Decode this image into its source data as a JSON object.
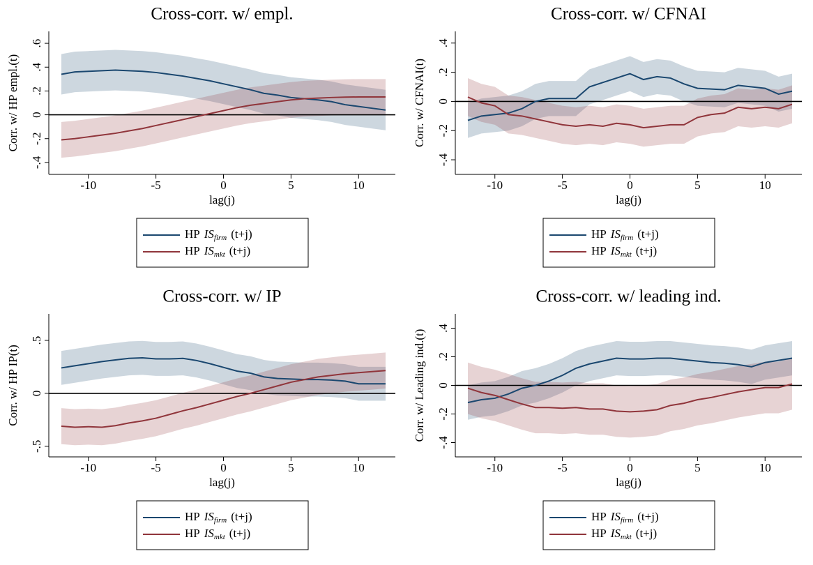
{
  "chart_data": [
    {
      "type": "line",
      "title": "Cross-corr. w/ empl.",
      "xlabel": "lag(j)",
      "ylabel": "Corr. w/ HP empl.(t)",
      "x": [
        -12,
        -11,
        -10,
        -9,
        -8,
        -7,
        -6,
        -5,
        -4,
        -3,
        -2,
        -1,
        0,
        1,
        2,
        3,
        4,
        5,
        6,
        7,
        8,
        9,
        10,
        11,
        12
      ],
      "xlim": [
        -12,
        12
      ],
      "xticks": [
        -10,
        -5,
        0,
        5,
        10
      ],
      "ylim": [
        -0.5,
        0.7
      ],
      "yticks": [
        {
          "value": -0.4,
          "label": "-.4"
        },
        {
          "value": -0.2,
          "label": "-.2"
        },
        0,
        {
          "value": 0.2,
          "label": ".2"
        },
        {
          "value": 0.4,
          "label": ".4"
        },
        {
          "value": 0.6,
          "label": ".6"
        }
      ],
      "hline": 0,
      "series": [
        {
          "name": [
            "HP",
            "IS",
            "firm",
            "(t+j)"
          ],
          "color": "#1a476f",
          "values": [
            0.34,
            0.36,
            0.365,
            0.37,
            0.375,
            0.37,
            0.365,
            0.355,
            0.34,
            0.325,
            0.305,
            0.285,
            0.26,
            0.235,
            0.21,
            0.18,
            0.165,
            0.145,
            0.135,
            0.125,
            0.11,
            0.085,
            0.07,
            0.055,
            0.04
          ],
          "lower": [
            0.17,
            0.19,
            0.195,
            0.2,
            0.205,
            0.2,
            0.195,
            0.185,
            0.17,
            0.155,
            0.135,
            0.115,
            0.09,
            0.065,
            0.04,
            0.01,
            -0.005,
            -0.025,
            -0.035,
            -0.045,
            -0.06,
            -0.085,
            -0.1,
            -0.115,
            -0.13
          ],
          "upper": [
            0.51,
            0.53,
            0.535,
            0.54,
            0.545,
            0.54,
            0.535,
            0.525,
            0.51,
            0.495,
            0.475,
            0.455,
            0.43,
            0.405,
            0.38,
            0.35,
            0.335,
            0.315,
            0.305,
            0.295,
            0.28,
            0.255,
            0.24,
            0.225,
            0.21
          ]
        },
        {
          "name": [
            "HP",
            "IS",
            "mkt",
            "(t+j)"
          ],
          "color": "#90353b",
          "values": [
            -0.21,
            -0.2,
            -0.185,
            -0.17,
            -0.155,
            -0.135,
            -0.115,
            -0.09,
            -0.065,
            -0.04,
            -0.015,
            0.01,
            0.035,
            0.06,
            0.08,
            0.095,
            0.11,
            0.125,
            0.135,
            0.14,
            0.145,
            0.148,
            0.15,
            0.15,
            0.15
          ],
          "lower": [
            -0.36,
            -0.35,
            -0.335,
            -0.32,
            -0.305,
            -0.285,
            -0.265,
            -0.24,
            -0.215,
            -0.19,
            -0.165,
            -0.14,
            -0.115,
            -0.09,
            -0.07,
            -0.055,
            -0.04,
            -0.025,
            -0.015,
            -0.01,
            -0.005,
            -0.002,
            0,
            0,
            0
          ],
          "upper": [
            -0.06,
            -0.05,
            -0.035,
            -0.02,
            -0.005,
            0.015,
            0.035,
            0.06,
            0.085,
            0.11,
            0.135,
            0.16,
            0.185,
            0.21,
            0.23,
            0.245,
            0.26,
            0.275,
            0.285,
            0.29,
            0.295,
            0.298,
            0.3,
            0.3,
            0.3
          ]
        }
      ]
    },
    {
      "type": "line",
      "title": "Cross-corr. w/ CFNAI",
      "xlabel": "lag(j)",
      "ylabel": "Corr. w/ CFNAI(t)",
      "x": [
        -12,
        -11,
        -10,
        -9,
        -8,
        -7,
        -6,
        -5,
        -4,
        -3,
        -2,
        -1,
        0,
        1,
        2,
        3,
        4,
        5,
        6,
        7,
        8,
        9,
        10,
        11,
        12
      ],
      "xlim": [
        -12,
        12
      ],
      "xticks": [
        -10,
        -5,
        0,
        5,
        10
      ],
      "ylim": [
        -0.5,
        0.48
      ],
      "yticks": [
        {
          "value": -0.4,
          "label": "-.4"
        },
        {
          "value": -0.2,
          "label": "-.2"
        },
        0,
        {
          "value": 0.2,
          "label": ".2"
        },
        {
          "value": 0.4,
          "label": ".4"
        }
      ],
      "hline": 0,
      "series": [
        {
          "name": [
            "HP",
            "IS",
            "firm",
            "(t+j)"
          ],
          "color": "#1a476f",
          "values": [
            -0.13,
            -0.1,
            -0.09,
            -0.08,
            -0.05,
            0,
            0.02,
            0.02,
            0.02,
            0.1,
            0.13,
            0.16,
            0.19,
            0.15,
            0.17,
            0.16,
            0.12,
            0.09,
            0.085,
            0.08,
            0.11,
            0.1,
            0.09,
            0.05,
            0.07
          ],
          "lower": [
            -0.25,
            -0.22,
            -0.21,
            -0.2,
            -0.17,
            -0.12,
            -0.1,
            -0.1,
            -0.1,
            -0.02,
            0.01,
            0.04,
            0.07,
            0.03,
            0.05,
            0.04,
            0,
            -0.03,
            -0.035,
            -0.04,
            -0.01,
            -0.02,
            -0.03,
            -0.07,
            -0.05
          ],
          "upper": [
            -0.01,
            0.02,
            0.03,
            0.04,
            0.07,
            0.12,
            0.14,
            0.14,
            0.14,
            0.22,
            0.25,
            0.28,
            0.31,
            0.27,
            0.29,
            0.28,
            0.24,
            0.21,
            0.205,
            0.2,
            0.23,
            0.22,
            0.21,
            0.17,
            0.19
          ]
        },
        {
          "name": [
            "HP",
            "IS",
            "mkt",
            "(t+j)"
          ],
          "color": "#90353b",
          "values": [
            0.03,
            -0.01,
            -0.03,
            -0.09,
            -0.1,
            -0.12,
            -0.14,
            -0.16,
            -0.17,
            -0.16,
            -0.17,
            -0.15,
            -0.16,
            -0.18,
            -0.17,
            -0.16,
            -0.16,
            -0.11,
            -0.09,
            -0.08,
            -0.04,
            -0.05,
            -0.04,
            -0.05,
            -0.02
          ],
          "lower": [
            -0.1,
            -0.14,
            -0.16,
            -0.22,
            -0.23,
            -0.25,
            -0.27,
            -0.29,
            -0.3,
            -0.29,
            -0.3,
            -0.28,
            -0.29,
            -0.31,
            -0.3,
            -0.29,
            -0.29,
            -0.24,
            -0.22,
            -0.21,
            -0.17,
            -0.18,
            -0.17,
            -0.18,
            -0.15
          ],
          "upper": [
            0.16,
            0.12,
            0.1,
            0.04,
            0.03,
            0.01,
            -0.01,
            -0.03,
            -0.04,
            -0.03,
            -0.04,
            -0.02,
            -0.03,
            -0.05,
            -0.04,
            -0.03,
            -0.03,
            0.02,
            0.04,
            0.05,
            0.09,
            0.08,
            0.09,
            0.08,
            0.11
          ]
        }
      ]
    },
    {
      "type": "line",
      "title": "Cross-corr. w/ IP",
      "xlabel": "lag(j)",
      "ylabel": "Corr. w/ HP IP(t)",
      "x": [
        -12,
        -11,
        -10,
        -9,
        -8,
        -7,
        -6,
        -5,
        -4,
        -3,
        -2,
        -1,
        0,
        1,
        2,
        3,
        4,
        5,
        6,
        7,
        8,
        9,
        10,
        11,
        12
      ],
      "xlim": [
        -12,
        12
      ],
      "xticks": [
        -10,
        -5,
        0,
        5,
        10
      ],
      "ylim": [
        -0.6,
        0.75
      ],
      "yticks": [
        {
          "value": -0.5,
          "label": "-.5"
        },
        0,
        {
          "value": 0.5,
          "label": ".5"
        }
      ],
      "hline": 0,
      "series": [
        {
          "name": [
            "HP",
            "IS",
            "firm",
            "(t+j)"
          ],
          "color": "#1a476f",
          "values": [
            0.24,
            0.26,
            0.28,
            0.3,
            0.315,
            0.33,
            0.335,
            0.325,
            0.325,
            0.33,
            0.31,
            0.28,
            0.245,
            0.21,
            0.19,
            0.155,
            0.14,
            0.135,
            0.13,
            0.13,
            0.125,
            0.115,
            0.09,
            0.09,
            0.09
          ],
          "lower": [
            0.08,
            0.1,
            0.12,
            0.14,
            0.155,
            0.17,
            0.175,
            0.165,
            0.165,
            0.17,
            0.15,
            0.12,
            0.085,
            0.05,
            0.03,
            -0.005,
            -0.02,
            -0.025,
            -0.03,
            -0.03,
            -0.035,
            -0.045,
            -0.07,
            -0.07,
            -0.07
          ],
          "upper": [
            0.4,
            0.42,
            0.44,
            0.46,
            0.475,
            0.49,
            0.495,
            0.485,
            0.485,
            0.49,
            0.47,
            0.44,
            0.405,
            0.37,
            0.35,
            0.315,
            0.3,
            0.295,
            0.29,
            0.29,
            0.285,
            0.275,
            0.25,
            0.25,
            0.25
          ]
        },
        {
          "name": [
            "HP",
            "IS",
            "mkt",
            "(t+j)"
          ],
          "color": "#90353b",
          "values": [
            -0.31,
            -0.32,
            -0.315,
            -0.32,
            -0.305,
            -0.28,
            -0.26,
            -0.235,
            -0.2,
            -0.165,
            -0.135,
            -0.1,
            -0.065,
            -0.03,
            0,
            0.035,
            0.07,
            0.105,
            0.13,
            0.155,
            0.17,
            0.185,
            0.195,
            0.205,
            0.215
          ],
          "lower": [
            -0.48,
            -0.49,
            -0.485,
            -0.49,
            -0.475,
            -0.45,
            -0.43,
            -0.405,
            -0.37,
            -0.335,
            -0.305,
            -0.27,
            -0.235,
            -0.2,
            -0.17,
            -0.135,
            -0.1,
            -0.065,
            -0.04,
            -0.015,
            0,
            0.015,
            0.025,
            0.035,
            0.045
          ],
          "upper": [
            -0.14,
            -0.15,
            -0.145,
            -0.15,
            -0.135,
            -0.11,
            -0.09,
            -0.065,
            -0.03,
            0.005,
            0.035,
            0.07,
            0.105,
            0.14,
            0.17,
            0.205,
            0.24,
            0.275,
            0.3,
            0.325,
            0.34,
            0.355,
            0.365,
            0.375,
            0.385
          ]
        }
      ]
    },
    {
      "type": "line",
      "title": "Cross-corr. w/ leading ind.",
      "xlabel": "lag(j)",
      "ylabel": "Corr. w/ Leading ind.(t)",
      "x": [
        -12,
        -11,
        -10,
        -9,
        -8,
        -7,
        -6,
        -5,
        -4,
        -3,
        -2,
        -1,
        0,
        1,
        2,
        3,
        4,
        5,
        6,
        7,
        8,
        9,
        10,
        11,
        12
      ],
      "xlim": [
        -12,
        12
      ],
      "xticks": [
        -10,
        -5,
        0,
        5,
        10
      ],
      "ylim": [
        -0.5,
        0.5
      ],
      "yticks": [
        {
          "value": -0.4,
          "label": "-.4"
        },
        {
          "value": -0.2,
          "label": "-.2"
        },
        0,
        {
          "value": 0.2,
          "label": ".2"
        },
        {
          "value": 0.4,
          "label": ".4"
        }
      ],
      "hline": 0,
      "series": [
        {
          "name": [
            "HP",
            "IS",
            "firm",
            "(t+j)"
          ],
          "color": "#1a476f",
          "values": [
            -0.12,
            -0.1,
            -0.09,
            -0.06,
            -0.02,
            0,
            0.03,
            0.07,
            0.12,
            0.15,
            0.17,
            0.19,
            0.185,
            0.185,
            0.19,
            0.19,
            0.18,
            0.17,
            0.16,
            0.155,
            0.145,
            0.13,
            0.16,
            0.175,
            0.19
          ],
          "lower": [
            -0.24,
            -0.22,
            -0.21,
            -0.18,
            -0.14,
            -0.12,
            -0.09,
            -0.05,
            0,
            0.03,
            0.05,
            0.07,
            0.065,
            0.065,
            0.07,
            0.07,
            0.06,
            0.05,
            0.04,
            0.035,
            0.025,
            0.01,
            0.04,
            0.055,
            0.07
          ],
          "upper": [
            0,
            0.02,
            0.03,
            0.06,
            0.1,
            0.12,
            0.15,
            0.19,
            0.24,
            0.27,
            0.29,
            0.31,
            0.305,
            0.305,
            0.31,
            0.31,
            0.3,
            0.29,
            0.28,
            0.275,
            0.265,
            0.25,
            0.28,
            0.295,
            0.31
          ]
        },
        {
          "name": [
            "HP",
            "IS",
            "mkt",
            "(t+j)"
          ],
          "color": "#90353b",
          "values": [
            -0.02,
            -0.05,
            -0.07,
            -0.1,
            -0.13,
            -0.155,
            -0.155,
            -0.16,
            -0.155,
            -0.165,
            -0.165,
            -0.18,
            -0.185,
            -0.18,
            -0.17,
            -0.14,
            -0.125,
            -0.1,
            -0.085,
            -0.065,
            -0.045,
            -0.03,
            -0.015,
            -0.015,
            0.01
          ],
          "lower": [
            -0.2,
            -0.23,
            -0.25,
            -0.28,
            -0.31,
            -0.335,
            -0.335,
            -0.34,
            -0.335,
            -0.345,
            -0.345,
            -0.36,
            -0.365,
            -0.36,
            -0.35,
            -0.32,
            -0.305,
            -0.28,
            -0.265,
            -0.245,
            -0.225,
            -0.21,
            -0.195,
            -0.195,
            -0.17
          ],
          "upper": [
            0.16,
            0.13,
            0.11,
            0.08,
            0.05,
            0.025,
            0.025,
            0.02,
            0.025,
            0.015,
            0.015,
            0,
            -0.005,
            0,
            0.01,
            0.04,
            0.055,
            0.08,
            0.095,
            0.115,
            0.135,
            0.15,
            0.165,
            0.165,
            0.19
          ]
        }
      ]
    }
  ]
}
